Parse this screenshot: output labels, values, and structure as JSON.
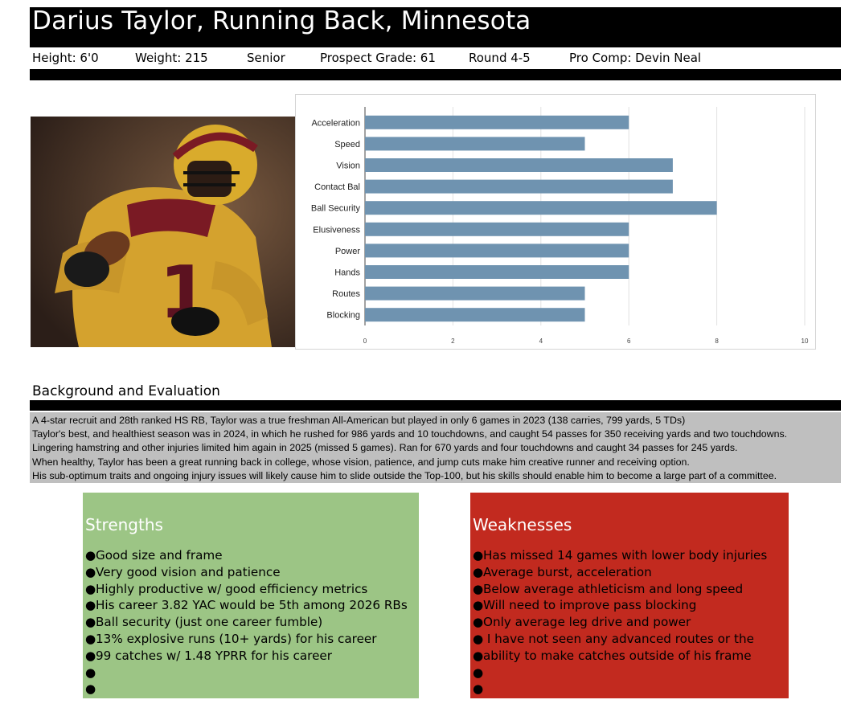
{
  "header": {
    "title": "Darius Taylor, Running Back, Minnesota",
    "height": "Height: 6'0",
    "weight": "Weight: 215",
    "class_year": "Senior",
    "prospect_grade": "Prospect Grade: 61",
    "round": "Round 4-5",
    "pro_comp": "Pro Comp: Devin Neal"
  },
  "photo": {
    "icon": "football-player-photo"
  },
  "chart_data": {
    "type": "bar",
    "orientation": "horizontal",
    "categories": [
      "Acceleration",
      "Speed",
      "Vision",
      "Contact Bal",
      "Ball Security",
      "Elusiveness",
      "Power",
      "Hands",
      "Routes",
      "Blocking"
    ],
    "values": [
      6,
      5,
      7,
      7,
      8,
      6,
      6,
      6,
      5,
      5
    ],
    "xlim": [
      0,
      10
    ],
    "xticks": [
      "0",
      "2",
      "4",
      "6",
      "8",
      "10"
    ],
    "bar_color": "#6f93b0",
    "grid": true
  },
  "background": {
    "heading": "Background and Evaluation",
    "lines": [
      "A 4-star recruit and 28th ranked HS RB, Taylor was a true freshman All-American but played in only 6 games in 2023 (138 carries, 799 yards, 5 TDs)",
      "Taylor's best, and healthiest season was in 2024, in which he rushed for 986 yards and 10 touchdowns, and caught 54 passes for 350 receiving yards and two touchdowns.",
      "Lingering hamstring and other injuries limited him again in 2025 (missed 5 games). Ran for 670 yards and four touchdowns and caught 34 passes for 245 yards.",
      "When healthy, Taylor has been a great running back in college, whose vision, patience, and jump cuts make him creative runner and receiving option.",
      "His sub-optimum traits and ongoing injury issues will likely cause him to slide outside the Top-100, but his skills should enable him to become a large part of a committee."
    ]
  },
  "strengths": {
    "title": "Strengths",
    "bullet": "●",
    "items": [
      "Good size and frame",
      "Very good vision and patience",
      "Highly productive w/ good efficiency metrics",
      "His career 3.82 YAC would be 5th among 2026 RBs",
      "Ball security (just one career fumble)",
      "13% explosive runs (10+ yards) for his career",
      "99 catches w/ 1.48 YPRR for his career",
      "",
      ""
    ],
    "color": "#9cc585"
  },
  "weaknesses": {
    "title": "Weaknesses",
    "bullet": "●",
    "items": [
      "Has missed 14 games with lower body injuries",
      "Average burst, acceleration",
      "Below average athleticism and long speed",
      "Will need to improve pass blocking",
      "Only average leg drive and power",
      " I have not seen any advanced routes or the",
      "ability to make catches outside of his frame",
      "",
      ""
    ],
    "color": "#c22a1f"
  }
}
